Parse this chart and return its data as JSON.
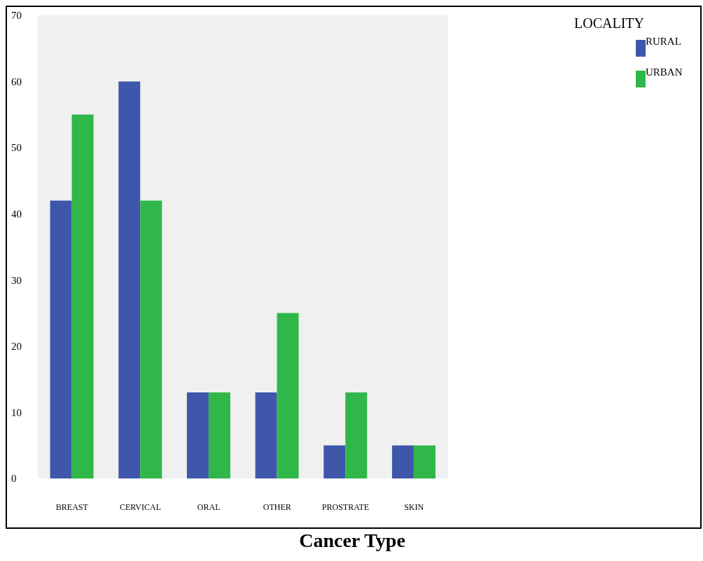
{
  "chart_data": {
    "type": "bar",
    "xlabel": "Cancer Type",
    "legend_title": "LOCALITY",
    "categories": [
      "BREAST",
      "CERVICAL",
      "ORAL",
      "OTHER",
      "PROSTRATE",
      "SKIN"
    ],
    "series": [
      {
        "name": "RURAL",
        "color": "#3f57ab",
        "values": [
          42,
          60,
          13,
          13,
          5,
          5
        ]
      },
      {
        "name": "URBAN",
        "color": "#2fb74a",
        "values": [
          55,
          42,
          13,
          25,
          13,
          5
        ]
      }
    ],
    "ylim": [
      0,
      70
    ],
    "yticks": [
      0,
      10,
      20,
      30,
      40,
      50,
      60,
      70
    ],
    "grid": false,
    "legend": "top right"
  }
}
